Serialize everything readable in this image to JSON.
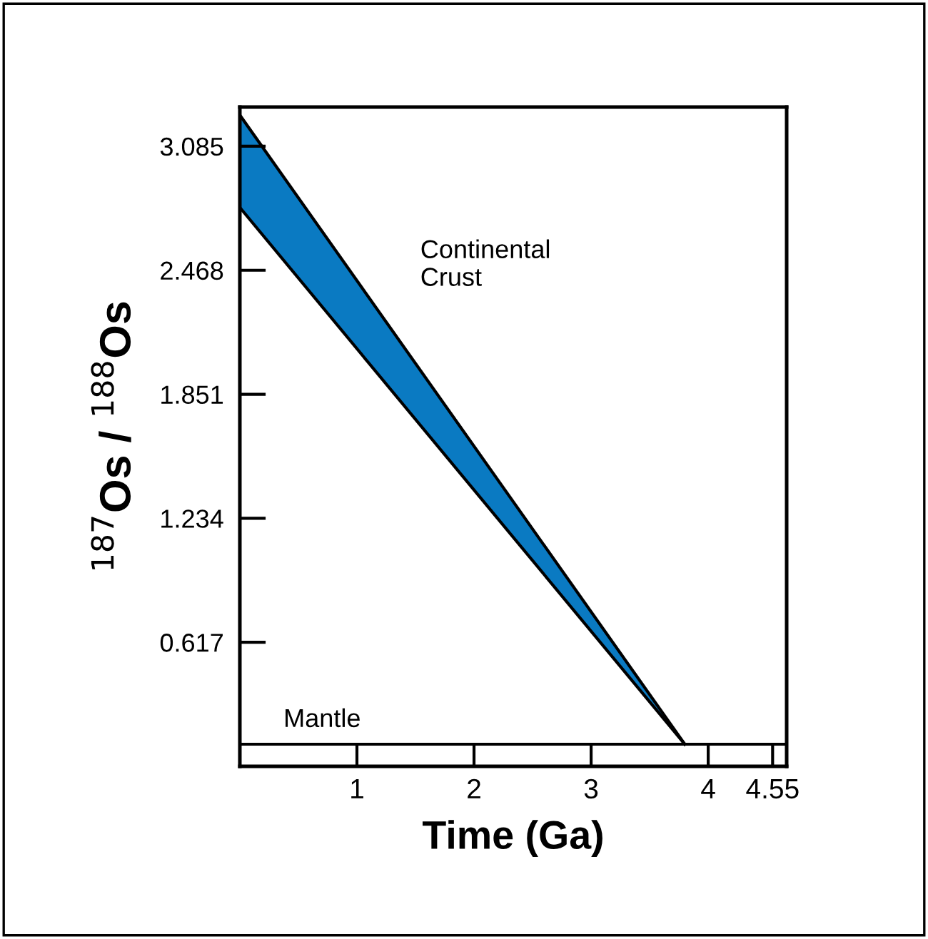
{
  "chart_data": {
    "type": "area",
    "xlabel": "Time (Ga)",
    "ylabel": "$^{187}$Os / $^{188}$Os",
    "x": [
      0,
      3.8
    ],
    "stacked": true,
    "series": [
      {
        "color": "#ffffff",
        "values": [
          2.78,
          0.11
        ]
      },
      {
        "color": "#0a7ac2",
        "values": [
          0.46,
          0
        ]
      }
    ],
    "xlim": [
      0,
      4.67
    ],
    "ylim": [
      0,
      3.28
    ],
    "xticks": [
      1,
      2,
      3,
      4,
      4.55
    ],
    "yticks": [
      0.617,
      1.234,
      1.851,
      2.468,
      3.085
    ],
    "ref_lines": [
      {
        "axis": "y",
        "value": 0.11,
        "label": "Mantle",
        "color": "#000000"
      }
    ],
    "annotations": [
      "Continental\nCrust"
    ],
    "grid": false,
    "legend": false
  }
}
